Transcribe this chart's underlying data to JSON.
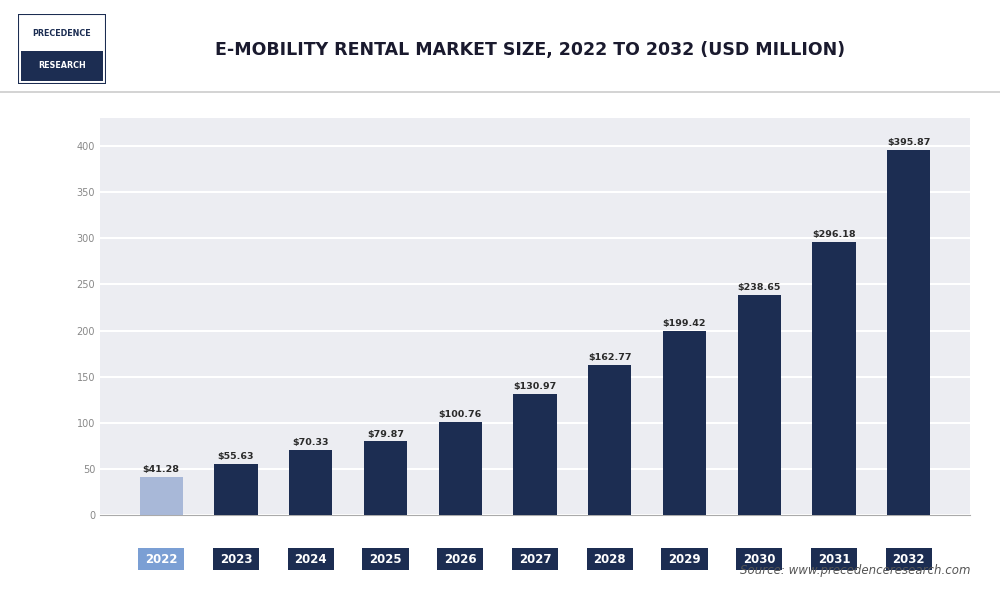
{
  "title": "E-MOBILITY RENTAL MARKET SIZE, 2022 TO 2032 (USD MILLION)",
  "years": [
    "2022",
    "2023",
    "2024",
    "2025",
    "2026",
    "2027",
    "2028",
    "2029",
    "2030",
    "2031",
    "2032"
  ],
  "values": [
    41.28,
    55.63,
    70.33,
    79.87,
    100.76,
    130.97,
    162.77,
    199.42,
    238.65,
    296.18,
    395.87
  ],
  "bar_colors": [
    "#a8b8d8",
    "#1c2d52",
    "#1c2d52",
    "#1c2d52",
    "#1c2d52",
    "#1c2d52",
    "#1c2d52",
    "#1c2d52",
    "#1c2d52",
    "#1c2d52",
    "#1c2d52"
  ],
  "tick_label_bg_2022": "#7b9fd4",
  "tick_label_bg_others": "#1c2d52",
  "ylim": [
    0,
    430
  ],
  "ytick_count": 10,
  "background_color": "#ffffff",
  "plot_bg_color": "#ecedf2",
  "grid_color": "#ffffff",
  "source_text": "Source: www.precedenceresearch.com",
  "value_labels": [
    "$41.28",
    "$55.63",
    "$70.33",
    "$79.87",
    "$100.76",
    "$130.97",
    "$162.77",
    "$199.42",
    "$238.65",
    "$296.18",
    "$395.87"
  ],
  "separator_color": "#cccccc",
  "logo_border_color": "#1c2d52",
  "logo_text1_color": "#1c2d52",
  "logo_text2_bg": "#1c2d52",
  "logo_text2_color": "#ffffff",
  "title_color": "#1a1a2e",
  "yaxis_label_color": "#888888",
  "spine_bottom_color": "#aaaaaa"
}
